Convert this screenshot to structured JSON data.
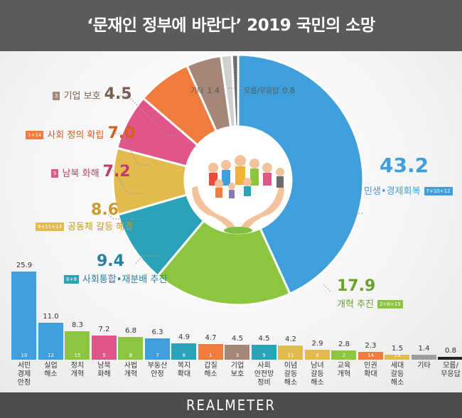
{
  "header": {
    "title": "‘문재인 정부에 바란다’ 2019 국민의 소망"
  },
  "footer": {
    "brand": "REALMETER"
  },
  "colors": {
    "blue": "#3e9fdb",
    "green": "#8cc63f",
    "teal": "#2aa2b8",
    "yellow": "#e2bb4f",
    "pink": "#e0568a",
    "orange": "#ef7c3d",
    "brown": "#a5877a",
    "gray": "#9e9e9e",
    "lightgray": "#d0d0d0",
    "black": "#222222",
    "purple": "#8d78b8"
  },
  "chart_data": [
    {
      "type": "pie",
      "title": "",
      "slices": [
        {
          "name": "민생•경제회복",
          "value": 43.2,
          "code": "7+10+12",
          "color": "#3e9fdb"
        },
        {
          "name": "개혁 추진",
          "value": 17.9,
          "code": "2+8+15",
          "color": "#8cc63f"
        },
        {
          "name": "사회통합•재분배 추진",
          "value": 9.4,
          "code": "6+9",
          "color": "#2aa2b8"
        },
        {
          "name": "공동체 갈등 해결",
          "value": 8.6,
          "code": "4+11+13",
          "color": "#e2bb4f"
        },
        {
          "name": "남북 화해",
          "value": 7.2,
          "code": "5",
          "color": "#e0568a"
        },
        {
          "name": "사회 정의 확립",
          "value": 7.0,
          "code": "1+14",
          "color": "#ef7c3d"
        },
        {
          "name": "기업 보호",
          "value": 4.5,
          "code": "3",
          "color": "#a5877a"
        },
        {
          "name": "기타",
          "value": 1.4,
          "code": "",
          "color": "#d0d0d0"
        },
        {
          "name": "모름/무응답",
          "value": 0.8,
          "code": "",
          "color": "#666666"
        }
      ]
    },
    {
      "type": "bar",
      "title": "",
      "ylim": [
        0,
        26
      ],
      "bars": [
        {
          "category": "서민\n경제\n안정",
          "value": 25.9,
          "code": "10",
          "color": "#3e9fdb"
        },
        {
          "category": "실업\n해소",
          "value": 11.0,
          "code": "12",
          "color": "#3e9fdb"
        },
        {
          "category": "정치\n개혁",
          "value": 8.3,
          "code": "15",
          "color": "#8cc63f"
        },
        {
          "category": "남북\n화해",
          "value": 7.2,
          "code": "5",
          "color": "#e0568a"
        },
        {
          "category": "사법\n개혁",
          "value": 6.8,
          "code": "8",
          "color": "#8cc63f"
        },
        {
          "category": "부동산\n안정",
          "value": 6.3,
          "code": "7",
          "color": "#3e9fdb"
        },
        {
          "category": "복지\n확대",
          "value": 4.9,
          "code": "6",
          "color": "#2aa2b8"
        },
        {
          "category": "갑질\n해소",
          "value": 4.7,
          "code": "1",
          "color": "#ef7c3d"
        },
        {
          "category": "기업\n보호",
          "value": 4.5,
          "code": "3",
          "color": "#a5877a"
        },
        {
          "category": "사회\n안전망\n정비",
          "value": 4.5,
          "code": "9",
          "color": "#2aa2b8"
        },
        {
          "category": "이념\n갈등\n해소",
          "value": 4.2,
          "code": "11",
          "color": "#e2bb4f"
        },
        {
          "category": "남녀\n갈등\n해소",
          "value": 2.9,
          "code": "4",
          "color": "#e2bb4f"
        },
        {
          "category": "교육\n개혁",
          "value": 2.8,
          "code": "2",
          "color": "#8cc63f"
        },
        {
          "category": "인권\n확대",
          "value": 2.3,
          "code": "14",
          "color": "#ef7c3d"
        },
        {
          "category": "세대\n갈등\n해소",
          "value": 1.5,
          "code": "13",
          "color": "#e2bb4f"
        },
        {
          "category": "기타",
          "value": 1.4,
          "code": "",
          "color": "#9e9e9e"
        },
        {
          "category": "모름/\n무응답",
          "value": 0.8,
          "code": "",
          "color": "#222222"
        }
      ]
    }
  ],
  "labels": {
    "l0": {
      "value": "43.2",
      "name": "민생•경제회복",
      "code": "7+10+12"
    },
    "l1": {
      "value": "17.9",
      "name": "개혁 추진",
      "code": "2+8+15"
    },
    "l2": {
      "value": "9.4",
      "name": "사회통합•재분배 추진",
      "code": "6+9"
    },
    "l3": {
      "value": "8.6",
      "name": "공동체 갈등 해결",
      "code": "4+11+13"
    },
    "l4": {
      "value": "7.2",
      "name": "남북 화해",
      "code": "5"
    },
    "l5": {
      "value": "7.0",
      "name": "사회 정의 확립",
      "code": "1+14"
    },
    "l6": {
      "value": "4.5",
      "name": "기업 보호",
      "code": "3"
    },
    "l7": {
      "value": "1.4",
      "name": "기타"
    },
    "l8": {
      "value": "0.8",
      "name": "모름/무응답"
    }
  }
}
